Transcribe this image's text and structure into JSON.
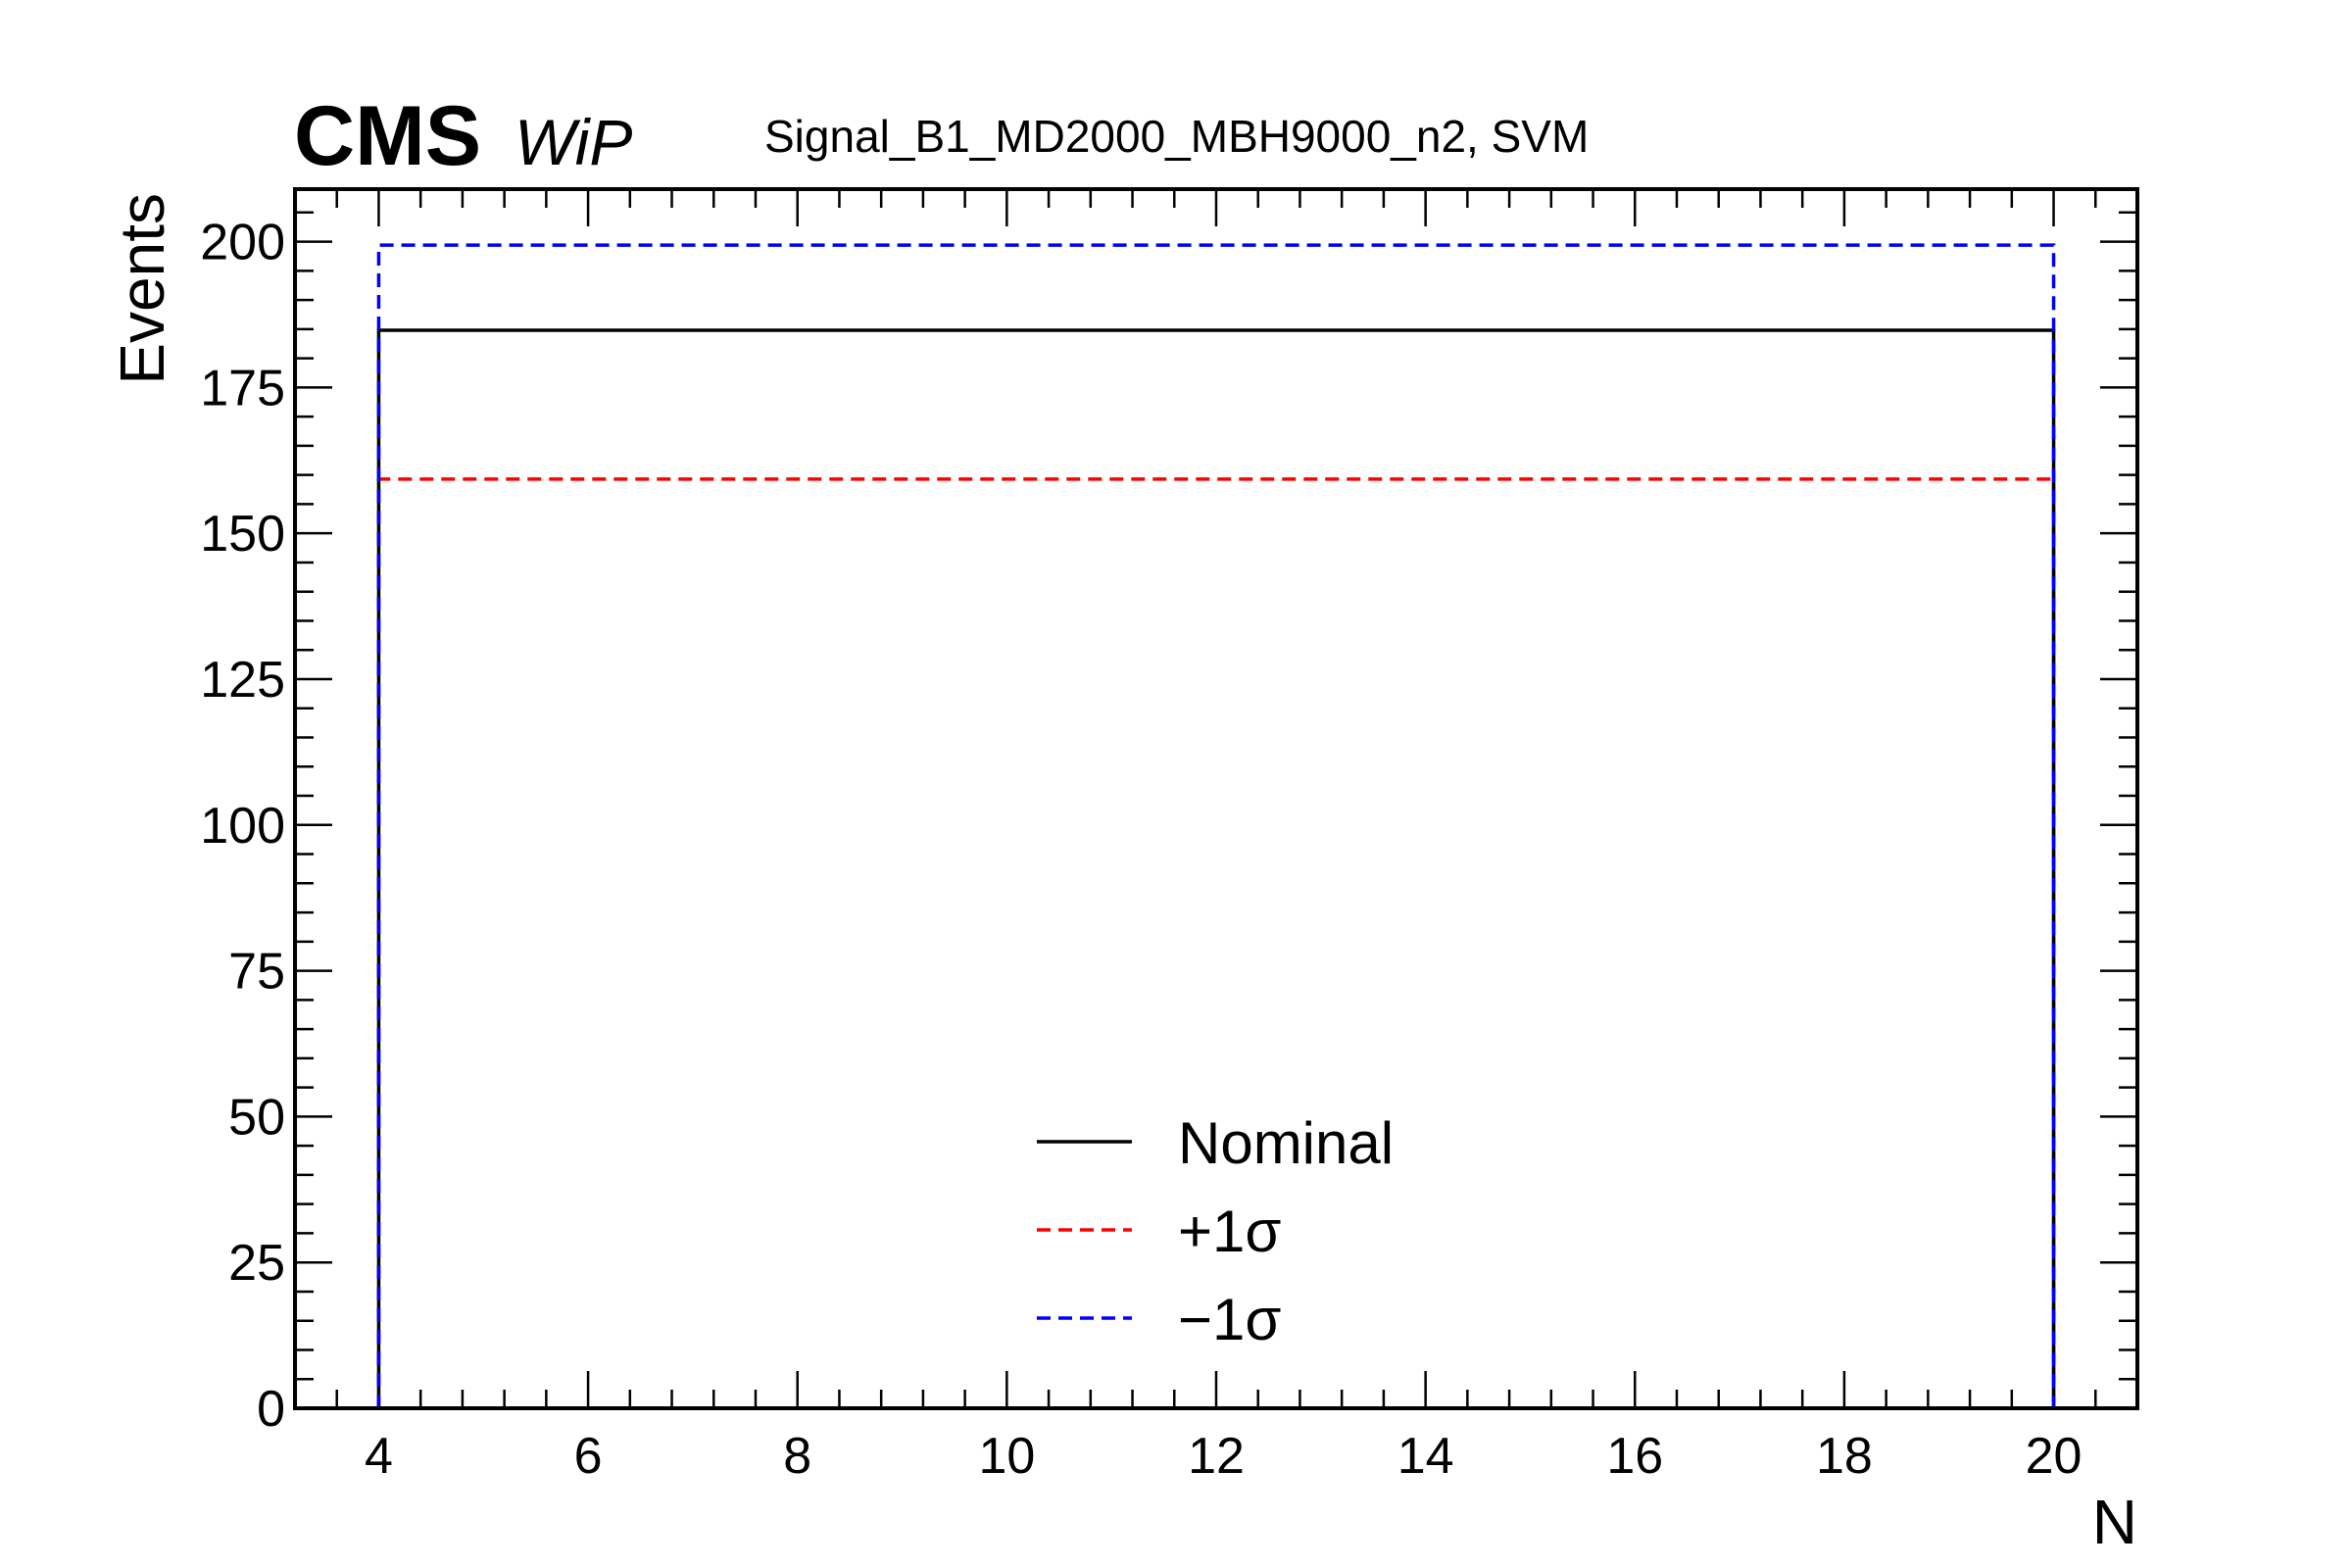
{
  "header": {
    "experiment": "CMS",
    "status": "WiP",
    "subtitle": "Signal_B1_MD2000_MBH9000_n2, SVM"
  },
  "chart_data": {
    "type": "line",
    "title": "Signal_B1_MD2000_MBH9000_n2, SVM",
    "xlabel": "N",
    "ylabel": "Events",
    "xlim": [
      3.2,
      20.8
    ],
    "ylim": [
      0,
      209
    ],
    "x_ticks": [
      4,
      6,
      8,
      10,
      12,
      14,
      16,
      18,
      20
    ],
    "x_tick_labels": [
      "4",
      "6",
      "8",
      "10",
      "12",
      "14",
      "16",
      "18",
      "20"
    ],
    "y_ticks": [
      0,
      25,
      50,
      75,
      100,
      125,
      150,
      175,
      200
    ],
    "y_tick_labels": [
      "0",
      "25",
      "50",
      "75",
      "100",
      "125",
      "150",
      "175",
      "200"
    ],
    "grid": false,
    "legend_position": "bottom-center",
    "series": [
      {
        "name": "Nominal",
        "style": "solid",
        "color": "#000000",
        "bin_edges": [
          4,
          20
        ],
        "values": [
          184.8
        ]
      },
      {
        "name": "+1σ",
        "style": "dashed",
        "color": "#ff0000",
        "bin_edges": [
          4,
          20
        ],
        "values": [
          159.3
        ]
      },
      {
        "name": "−1σ",
        "style": "dashed",
        "color": "#0000ff",
        "bin_edges": [
          4,
          20
        ],
        "values": [
          199.4
        ]
      }
    ]
  }
}
